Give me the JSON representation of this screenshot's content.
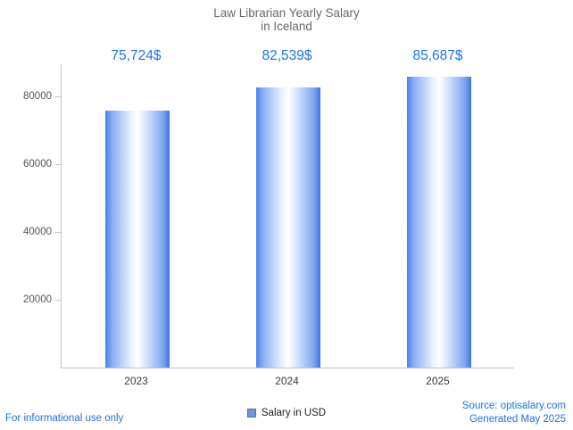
{
  "chart_data": {
    "type": "bar",
    "title": "Law Librarian Yearly Salary",
    "subtitle": "in Iceland",
    "categories": [
      "2023",
      "2024",
      "2025"
    ],
    "values": [
      75724,
      82539,
      85687
    ],
    "value_labels": [
      "75,724$",
      "82,539$",
      "85,687$"
    ],
    "ylim": [
      0,
      89400
    ],
    "yticks": [
      20000,
      40000,
      60000,
      80000
    ],
    "grid": false,
    "legend": {
      "label": "Salary in USD",
      "position": "bottom"
    }
  },
  "footer": {
    "disclaimer": "For informational use only",
    "source": "Source: optisalary.com",
    "generated": "Generated May 2025"
  },
  "colors": {
    "accent_text": "#1a73e8",
    "bar_left": "#4c82ea",
    "bar_center": "#ffffff",
    "bar_right": "#3d73e2",
    "legend_swatch": "#7096dd",
    "title_text": "#6d6a64",
    "axis_line": "#c4c4c4"
  }
}
